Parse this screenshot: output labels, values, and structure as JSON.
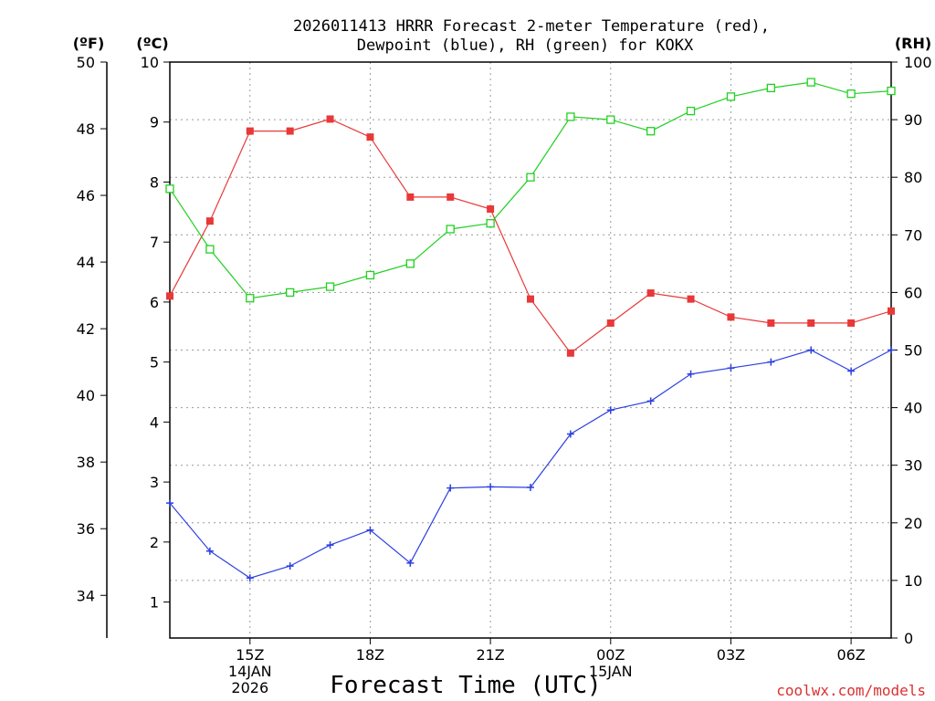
{
  "chart_data": {
    "type": "line",
    "title_line1": "2026011413 HRRR Forecast 2-meter Temperature (red),",
    "title_line2": "Dewpoint (blue), RH (green) for KOKX",
    "xlabel": "Forecast Time (UTC)",
    "credit": "coolwx.com/models",
    "units": {
      "fahrenheit": "(ºF)",
      "celsius": "(ºC)",
      "rh": "(RH)"
    },
    "x_hours": [
      13,
      14,
      15,
      16,
      17,
      18,
      19,
      20,
      21,
      22,
      23,
      24,
      25,
      26,
      27,
      28,
      29,
      30,
      31
    ],
    "xlim": [
      13,
      31
    ],
    "x_ticks": [
      {
        "hour": 15,
        "label": "15Z",
        "line2": "14JAN",
        "line3": "2026"
      },
      {
        "hour": 18,
        "label": "18Z",
        "line2": "",
        "line3": ""
      },
      {
        "hour": 21,
        "label": "21Z",
        "line2": "",
        "line3": ""
      },
      {
        "hour": 24,
        "label": "00Z",
        "line2": "15JAN",
        "line3": ""
      },
      {
        "hour": 27,
        "label": "03Z",
        "line2": "",
        "line3": ""
      },
      {
        "hour": 30,
        "label": "06Z",
        "line2": "",
        "line3": ""
      }
    ],
    "ylim_celsius": [
      0.4,
      10.0
    ],
    "celsius_ticks": [
      "1",
      "2",
      "3",
      "4",
      "5",
      "6",
      "7",
      "8",
      "9",
      "10"
    ],
    "fahrenheit_ticks": [
      "34",
      "36",
      "38",
      "40",
      "42",
      "44",
      "46",
      "48",
      "50"
    ],
    "rh_ticks": [
      "0",
      "10",
      "20",
      "30",
      "40",
      "50",
      "60",
      "70",
      "80",
      "90",
      "100"
    ],
    "series": [
      {
        "name": "Temperature",
        "color": "#e83838",
        "marker": "filled-square",
        "values": [
          6.1,
          7.35,
          8.85,
          8.85,
          9.05,
          8.75,
          7.75,
          7.75,
          7.55,
          6.05,
          5.15,
          5.65,
          6.15,
          6.05,
          5.75,
          5.65,
          5.65,
          5.65,
          5.85
        ]
      },
      {
        "name": "Dewpoint",
        "color": "#2c3fe0",
        "marker": "plus",
        "values": [
          2.65,
          1.85,
          1.4,
          1.6,
          1.95,
          2.2,
          1.65,
          2.9,
          2.92,
          2.91,
          3.8,
          4.2,
          4.35,
          4.8,
          4.9,
          5.0,
          5.2,
          4.85,
          5.2
        ]
      },
      {
        "name": "RH",
        "color": "#22d022",
        "marker": "open-square",
        "values": [
          78,
          67.5,
          59,
          60,
          61,
          63,
          65,
          71,
          72,
          80,
          90.5,
          90,
          88,
          91.5,
          94,
          95.5,
          96.5,
          94.5,
          95
        ]
      }
    ]
  }
}
